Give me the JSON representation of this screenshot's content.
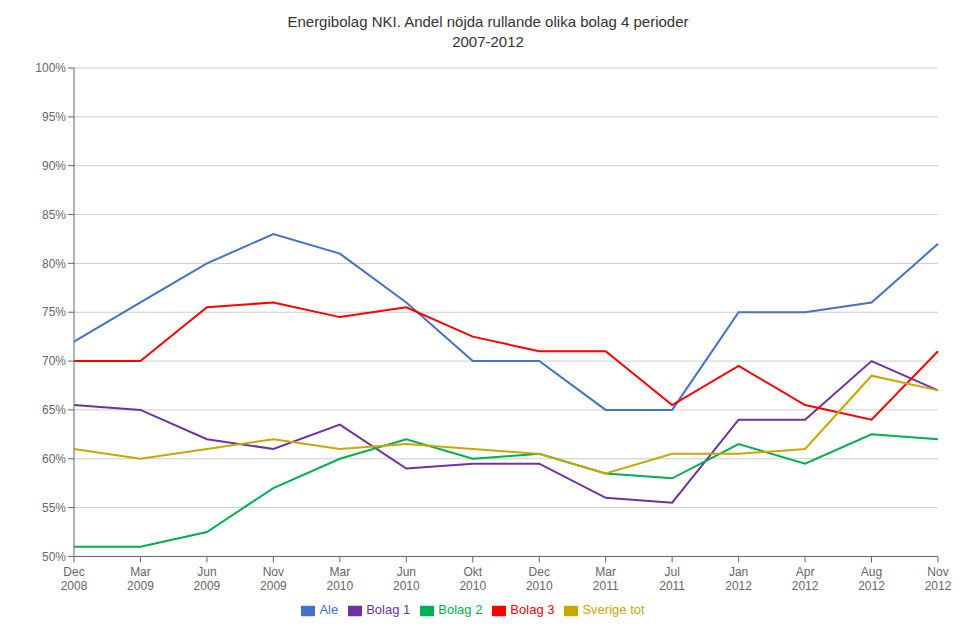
{
  "chart_data": {
    "type": "line",
    "title": "Energibolag NKI. Andel nöjda rullande olika bolag 4 perioder\n2007-2012",
    "categories": [
      "Dec\n2008",
      "Mar\n2009",
      "Jun\n2009",
      "Nov\n2009",
      "Mar\n2010",
      "Jun\n2010",
      "Okt\n2010",
      "Dec\n2010",
      "Mar\n2011",
      "Jul\n2011",
      "Jan\n2012",
      "Apr\n2012",
      "Aug\n2012",
      "Nov\n2012"
    ],
    "series": [
      {
        "name": "Ale",
        "color": "#4472C4",
        "values": [
          0.72,
          0.76,
          0.8,
          0.83,
          0.81,
          0.76,
          0.7,
          0.7,
          0.65,
          0.65,
          0.75,
          0.75,
          0.76,
          0.82
        ]
      },
      {
        "name": "Bolag 1",
        "color": "#7030A0",
        "values": [
          0.655,
          0.65,
          0.62,
          0.61,
          0.635,
          0.59,
          0.595,
          0.595,
          0.56,
          0.555,
          0.64,
          0.64,
          0.7,
          0.67
        ]
      },
      {
        "name": "Bolag 2",
        "color": "#00B050",
        "values": [
          0.51,
          0.51,
          0.525,
          0.57,
          0.6,
          0.62,
          0.6,
          0.605,
          0.585,
          0.58,
          0.615,
          0.595,
          0.625,
          0.62
        ]
      },
      {
        "name": "Bolag 3",
        "color": "#FF0000",
        "values": [
          0.7,
          0.7,
          0.755,
          0.76,
          0.745,
          0.755,
          0.725,
          0.71,
          0.71,
          0.655,
          0.695,
          0.655,
          0.64,
          0.71
        ]
      },
      {
        "name": "Sverige tot",
        "color": "#C8A800",
        "values": [
          0.61,
          0.6,
          0.61,
          0.62,
          0.61,
          0.615,
          0.61,
          0.605,
          0.585,
          0.605,
          0.605,
          0.61,
          0.685,
          0.67
        ]
      }
    ],
    "ylim": [
      0.5,
      1.0
    ],
    "yticks": [
      {
        "value": 0.5,
        "label": "50%"
      },
      {
        "value": 0.55,
        "label": "55%"
      },
      {
        "value": 0.6,
        "label": "60%"
      },
      {
        "value": 0.65,
        "label": "65%"
      },
      {
        "value": 0.7,
        "label": "70%"
      },
      {
        "value": 0.75,
        "label": "75%"
      },
      {
        "value": 0.8,
        "label": "80%"
      },
      {
        "value": 0.85,
        "label": "85%"
      },
      {
        "value": 0.9,
        "label": "90%"
      },
      {
        "value": 0.95,
        "label": "95%"
      },
      {
        "value": 1.0,
        "label": "100%"
      }
    ],
    "grid": true,
    "legend": "bottom"
  }
}
